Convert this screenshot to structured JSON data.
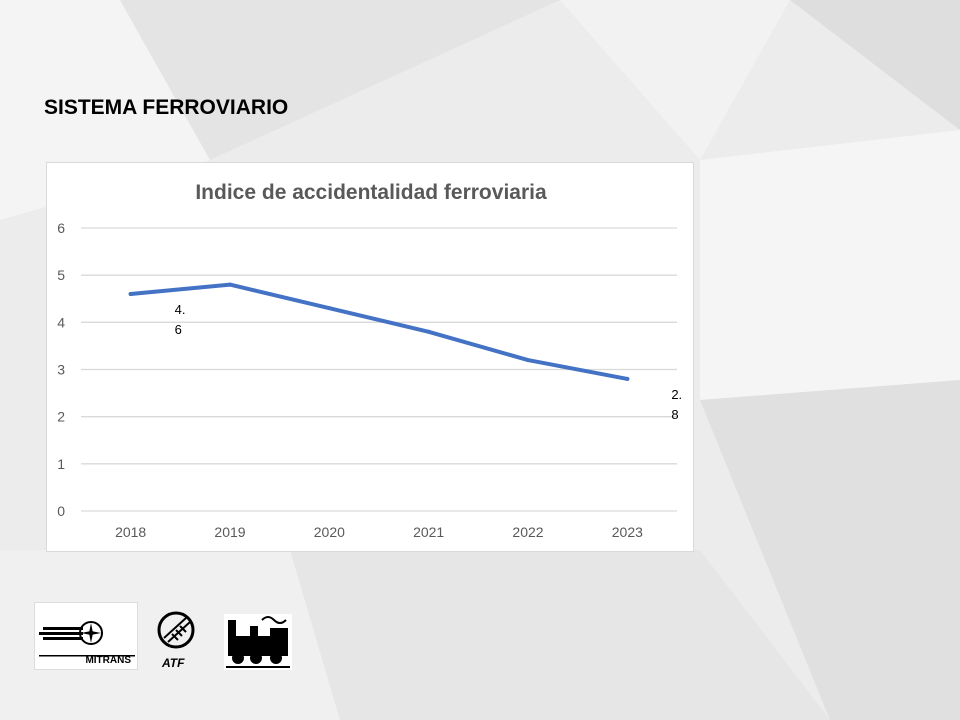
{
  "slide": {
    "title": "SISTEMA FERROVIARIO"
  },
  "logos": {
    "mitrans": "MITRANS",
    "atf": "ATF"
  },
  "colors": {
    "series": "#4472c4",
    "grid": "#d9d9d9",
    "axis_text": "#595959",
    "title_text": "#595959"
  },
  "chart_data": {
    "type": "line",
    "title": "Indice de accidentalidad ferroviaria",
    "categories": [
      "2018",
      "2019",
      "2020",
      "2021",
      "2022",
      "2023"
    ],
    "series": [
      {
        "values": [
          4.6,
          4.8,
          4.3,
          3.8,
          3.2,
          2.8
        ]
      }
    ],
    "data_labels": [
      {
        "category": "2018",
        "text": "4.\n6"
      },
      {
        "category": "2023",
        "text": "2.\n8"
      }
    ],
    "ylim": [
      0,
      6
    ],
    "yticks": [
      0,
      1,
      2,
      3,
      4,
      5,
      6
    ],
    "grid": true,
    "legend": "none"
  }
}
